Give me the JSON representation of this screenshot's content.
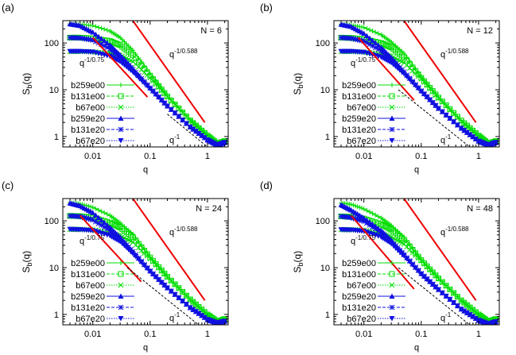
{
  "chart_data": [
    {
      "panel_label": "(a)",
      "annotation": "N = 6",
      "type": "line",
      "xlabel": "q",
      "ylabel": "S_b(q)",
      "xscale": "log",
      "yscale": "log",
      "xlim": [
        0.003,
        2.3
      ],
      "ylim": [
        0.6,
        300
      ],
      "xticks": [
        "0.01",
        "0.1",
        "1"
      ],
      "yticks": [
        "1",
        "10",
        "100"
      ],
      "legend_position": "left",
      "x": [
        0.004,
        0.006,
        0.01,
        0.02,
        0.03,
        0.05,
        0.1,
        0.2,
        0.5,
        1,
        1.5,
        2
      ],
      "series": [
        {
          "name": "b259e00",
          "color": "#00dd00",
          "marker": "plus",
          "dash": "solid",
          "values": [
            255,
            250,
            235,
            180,
            130,
            70,
            22,
            7.5,
            2.3,
            1.1,
            0.7,
            0.8
          ]
        },
        {
          "name": "b131e00",
          "color": "#00dd00",
          "marker": "square",
          "dash": "dashed",
          "values": [
            130,
            130,
            125,
            110,
            90,
            55,
            20,
            7.2,
            2.2,
            1.05,
            0.7,
            0.8
          ]
        },
        {
          "name": "b67e00",
          "color": "#00dd00",
          "marker": "cross",
          "dash": "dotted",
          "values": [
            66,
            66,
            65,
            60,
            55,
            40,
            18,
            7,
            2.2,
            1.05,
            0.7,
            0.8
          ]
        },
        {
          "name": "b259e20",
          "color": "#1010e0",
          "marker": "triangle",
          "dash": "solid",
          "values": [
            255,
            235,
            170,
            90,
            55,
            28,
            11,
            4.5,
            1.6,
            0.85,
            0.65,
            0.75
          ]
        },
        {
          "name": "b131e20",
          "color": "#1010e0",
          "marker": "star",
          "dash": "dashed",
          "values": [
            130,
            128,
            115,
            75,
            50,
            27,
            11,
            4.5,
            1.6,
            0.85,
            0.65,
            0.75
          ]
        },
        {
          "name": "b67e20",
          "color": "#1010e0",
          "marker": "triangle-down",
          "dash": "dotted",
          "values": [
            66,
            66,
            64,
            52,
            40,
            24,
            10.5,
            4.5,
            1.6,
            0.85,
            0.65,
            0.75
          ]
        }
      ],
      "reference_lines": [
        {
          "label": "q^-1/0.588",
          "base": "q",
          "exp": "-1/0.588",
          "color": "#ee0000",
          "dash": "solid",
          "from": [
            0.05,
            300
          ],
          "to": [
            0.9,
            2
          ]
        },
        {
          "label": "q^-1/0.75",
          "base": "q",
          "exp": "-1/0.75",
          "color": "#ee0000",
          "dash": "solid",
          "from": [
            0.01,
            130
          ],
          "to": [
            0.09,
            7
          ]
        },
        {
          "label": "q^-1",
          "base": "q",
          "exp": "-1",
          "color": "#000000",
          "dash": "dashed",
          "from": [
            0.2,
            3
          ],
          "to": [
            1,
            0.6
          ]
        }
      ]
    },
    {
      "panel_label": "(b)",
      "annotation": "N = 12",
      "type": "line",
      "xlabel": "q",
      "ylabel": "S_b(q)",
      "xscale": "log",
      "yscale": "log",
      "xlim": [
        0.003,
        2.3
      ],
      "ylim": [
        0.6,
        300
      ],
      "xticks": [
        "0.01",
        "0.1",
        "1"
      ],
      "yticks": [
        "1",
        "10",
        "100"
      ],
      "legend_position": "left",
      "x": [
        0.004,
        0.006,
        0.01,
        0.02,
        0.03,
        0.05,
        0.1,
        0.2,
        0.5,
        1,
        1.5,
        2
      ],
      "series": [
        {
          "name": "b259e00",
          "color": "#00dd00",
          "marker": "plus",
          "dash": "solid",
          "values": [
            250,
            240,
            215,
            150,
            105,
            60,
            19,
            7,
            2.2,
            1.05,
            0.7,
            0.8
          ]
        },
        {
          "name": "b131e00",
          "color": "#00dd00",
          "marker": "square",
          "dash": "dashed",
          "values": [
            130,
            128,
            120,
            100,
            80,
            50,
            18,
            6.8,
            2.2,
            1.05,
            0.7,
            0.8
          ]
        },
        {
          "name": "b67e00",
          "color": "#00dd00",
          "marker": "cross",
          "dash": "dotted",
          "values": [
            66,
            66,
            64,
            58,
            52,
            38,
            17,
            6.6,
            2.1,
            1.05,
            0.7,
            0.8
          ]
        },
        {
          "name": "b259e20",
          "color": "#1010e0",
          "marker": "triangle",
          "dash": "solid",
          "values": [
            250,
            225,
            160,
            80,
            48,
            24,
            9.5,
            4,
            1.5,
            0.8,
            0.65,
            0.75
          ]
        },
        {
          "name": "b131e20",
          "color": "#1010e0",
          "marker": "star",
          "dash": "dashed",
          "values": [
            130,
            126,
            110,
            68,
            45,
            24,
            9.5,
            4,
            1.5,
            0.8,
            0.65,
            0.75
          ]
        },
        {
          "name": "b67e20",
          "color": "#1010e0",
          "marker": "triangle-down",
          "dash": "dotted",
          "values": [
            66,
            66,
            63,
            50,
            38,
            22,
            9.2,
            4,
            1.5,
            0.8,
            0.65,
            0.75
          ]
        }
      ],
      "reference_lines": [
        {
          "label": "q^-1/0.588",
          "base": "q",
          "exp": "-1/0.588",
          "color": "#ee0000",
          "dash": "solid",
          "from": [
            0.05,
            300
          ],
          "to": [
            0.9,
            2
          ]
        },
        {
          "label": "q^-1/0.75",
          "base": "q",
          "exp": "-1/0.75",
          "color": "#ee0000",
          "dash": "solid",
          "from": [
            0.008,
            130
          ],
          "to": [
            0.075,
            6
          ]
        },
        {
          "label": "q^-1",
          "base": "q",
          "exp": "-1",
          "color": "#000000",
          "dash": "dashed",
          "from": [
            0.04,
            10
          ],
          "to": [
            0.7,
            0.6
          ]
        }
      ]
    },
    {
      "panel_label": "(c)",
      "annotation": "N = 24",
      "type": "line",
      "xlabel": "q",
      "ylabel": "S_b(q)",
      "xscale": "log",
      "yscale": "log",
      "xlim": [
        0.003,
        2.3
      ],
      "ylim": [
        0.6,
        300
      ],
      "xticks": [
        "0.01",
        "0.1",
        "1"
      ],
      "yticks": [
        "1",
        "10",
        "100"
      ],
      "legend_position": "left",
      "x": [
        0.004,
        0.006,
        0.01,
        0.02,
        0.03,
        0.05,
        0.1,
        0.2,
        0.5,
        1,
        1.5,
        2
      ],
      "series": [
        {
          "name": "b259e00",
          "color": "#00dd00",
          "marker": "plus",
          "dash": "solid",
          "values": [
            245,
            230,
            195,
            130,
            90,
            52,
            17,
            6.5,
            2.1,
            1.0,
            0.7,
            0.8
          ]
        },
        {
          "name": "b131e00",
          "color": "#00dd00",
          "marker": "square",
          "dash": "dashed",
          "values": [
            128,
            126,
            118,
            92,
            72,
            45,
            16.5,
            6.4,
            2.1,
            1.0,
            0.7,
            0.8
          ]
        },
        {
          "name": "b67e00",
          "color": "#00dd00",
          "marker": "cross",
          "dash": "dotted",
          "values": [
            66,
            66,
            64,
            56,
            48,
            35,
            15.5,
            6.3,
            2.1,
            1.0,
            0.7,
            0.8
          ]
        },
        {
          "name": "b259e20",
          "color": "#1010e0",
          "marker": "triangle",
          "dash": "solid",
          "values": [
            240,
            210,
            150,
            72,
            44,
            22,
            8.5,
            3.7,
            1.4,
            0.78,
            0.65,
            0.72
          ]
        },
        {
          "name": "b131e20",
          "color": "#1010e0",
          "marker": "star",
          "dash": "dashed",
          "values": [
            128,
            124,
            105,
            62,
            42,
            22,
            8.5,
            3.7,
            1.4,
            0.78,
            0.65,
            0.72
          ]
        },
        {
          "name": "b67e20",
          "color": "#1010e0",
          "marker": "triangle-down",
          "dash": "dotted",
          "values": [
            66,
            65,
            62,
            48,
            36,
            20,
            8.3,
            3.7,
            1.4,
            0.78,
            0.65,
            0.72
          ]
        }
      ],
      "reference_lines": [
        {
          "label": "q^-1/0.588",
          "base": "q",
          "exp": "-1/0.588",
          "color": "#ee0000",
          "dash": "solid",
          "from": [
            0.05,
            300
          ],
          "to": [
            0.9,
            2
          ]
        },
        {
          "label": "q^-1/0.75",
          "base": "q",
          "exp": "-1/0.75",
          "color": "#ee0000",
          "dash": "solid",
          "from": [
            0.006,
            130
          ],
          "to": [
            0.07,
            5
          ]
        },
        {
          "label": "q^-1",
          "base": "q",
          "exp": "-1",
          "color": "#000000",
          "dash": "dashed",
          "from": [
            0.04,
            10
          ],
          "to": [
            0.7,
            0.6
          ]
        }
      ]
    },
    {
      "panel_label": "(d)",
      "annotation": "N = 48",
      "type": "line",
      "xlabel": "q",
      "ylabel": "S_b(q)",
      "xscale": "log",
      "yscale": "log",
      "xlim": [
        0.003,
        2.3
      ],
      "ylim": [
        0.6,
        300
      ],
      "xticks": [
        "0.01",
        "0.1",
        "1"
      ],
      "yticks": [
        "1",
        "10",
        "100"
      ],
      "legend_position": "left",
      "x": [
        0.004,
        0.006,
        0.01,
        0.02,
        0.03,
        0.05,
        0.1,
        0.2,
        0.5,
        1,
        1.5,
        2
      ],
      "series": [
        {
          "name": "b259e00",
          "color": "#00dd00",
          "marker": "plus",
          "dash": "solid",
          "values": [
            240,
            225,
            180,
            115,
            80,
            45,
            15,
            6,
            2.0,
            1.0,
            0.7,
            0.8
          ]
        },
        {
          "name": "b131e00",
          "color": "#00dd00",
          "marker": "square",
          "dash": "dashed",
          "values": [
            125,
            122,
            112,
            85,
            65,
            40,
            14.5,
            5.9,
            2.0,
            1.0,
            0.7,
            0.8
          ]
        },
        {
          "name": "b67e00",
          "color": "#00dd00",
          "marker": "cross",
          "dash": "dotted",
          "values": [
            65,
            65,
            63,
            54,
            45,
            32,
            14,
            5.8,
            2.0,
            1.0,
            0.7,
            0.8
          ]
        },
        {
          "name": "b259e20",
          "color": "#1010e0",
          "marker": "triangle",
          "dash": "solid",
          "values": [
            220,
            170,
            115,
            62,
            38,
            19,
            7.5,
            3.4,
            1.3,
            0.75,
            0.62,
            0.7
          ]
        },
        {
          "name": "b131e20",
          "color": "#1010e0",
          "marker": "star",
          "dash": "dashed",
          "values": [
            125,
            118,
            98,
            56,
            36,
            19,
            7.5,
            3.4,
            1.3,
            0.75,
            0.62,
            0.7
          ]
        },
        {
          "name": "b67e20",
          "color": "#1010e0",
          "marker": "triangle-down",
          "dash": "dotted",
          "values": [
            65,
            64,
            60,
            45,
            33,
            18,
            7.3,
            3.4,
            1.3,
            0.75,
            0.62,
            0.7
          ]
        }
      ],
      "reference_lines": [
        {
          "label": "q^-1/0.588",
          "base": "q",
          "exp": "-1/0.588",
          "color": "#ee0000",
          "dash": "solid",
          "from": [
            0.05,
            300
          ],
          "to": [
            0.9,
            2
          ]
        },
        {
          "label": "q^-1/0.75",
          "base": "q",
          "exp": "-1/0.75",
          "color": "#ee0000",
          "dash": "solid",
          "from": [
            0.006,
            130
          ],
          "to": [
            0.075,
            3.5
          ]
        },
        {
          "label": "q^-1",
          "base": "q",
          "exp": "-1",
          "color": "#000000",
          "dash": "dashed",
          "from": [
            0.04,
            10
          ],
          "to": [
            0.7,
            0.6
          ]
        }
      ]
    }
  ]
}
